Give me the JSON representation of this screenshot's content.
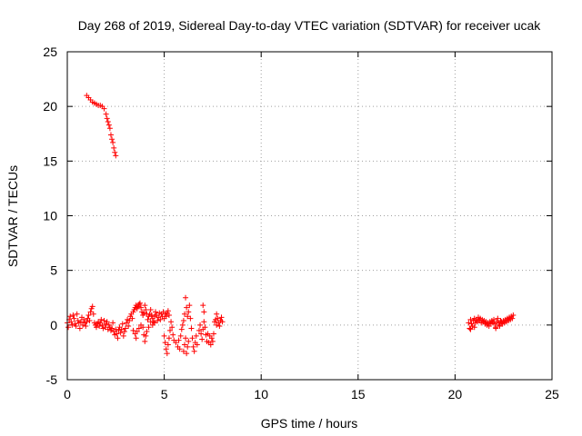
{
  "chart_data": {
    "type": "scatter",
    "title": "Day 268 of 2019, Sidereal Day-to-day VTEC variation (SDTVAR) for receiver ucak",
    "xlabel": "GPS time / hours",
    "ylabel": "SDTVAR / TECUs",
    "xlim": [
      0,
      25
    ],
    "ylim": [
      -5,
      25
    ],
    "x_ticks": [
      0,
      5,
      10,
      15,
      20,
      25
    ],
    "y_ticks": [
      -5,
      0,
      5,
      10,
      15,
      20,
      25
    ],
    "grid": true,
    "marker": "+",
    "series": [
      {
        "name": "SDTVAR",
        "color": "#ff0000",
        "points": [
          [
            1.0,
            21.0
          ],
          [
            1.1,
            20.8
          ],
          [
            1.2,
            20.6
          ],
          [
            1.3,
            20.4
          ],
          [
            1.4,
            20.3
          ],
          [
            1.5,
            20.2
          ],
          [
            1.6,
            20.1
          ],
          [
            1.7,
            20.1
          ],
          [
            1.8,
            20.0
          ],
          [
            1.9,
            19.8
          ],
          [
            2.0,
            19.3
          ],
          [
            2.05,
            18.9
          ],
          [
            2.1,
            18.6
          ],
          [
            2.15,
            18.3
          ],
          [
            2.2,
            18.0
          ],
          [
            2.25,
            17.4
          ],
          [
            2.3,
            17.0
          ],
          [
            2.35,
            16.7
          ],
          [
            2.4,
            16.2
          ],
          [
            2.45,
            15.8
          ],
          [
            2.5,
            15.5
          ],
          [
            0.0,
            0.2
          ],
          [
            0.05,
            -0.2
          ],
          [
            0.1,
            0.5
          ],
          [
            0.15,
            0.8
          ],
          [
            0.2,
            0.3
          ],
          [
            0.25,
            0.0
          ],
          [
            0.3,
            0.9
          ],
          [
            0.35,
            0.6
          ],
          [
            0.4,
            0.1
          ],
          [
            0.45,
            -0.1
          ],
          [
            0.5,
            1.0
          ],
          [
            0.55,
            0.4
          ],
          [
            0.6,
            0.2
          ],
          [
            0.65,
            -0.3
          ],
          [
            0.7,
            0.3
          ],
          [
            0.75,
            0.7
          ],
          [
            0.8,
            0.0
          ],
          [
            0.85,
            0.5
          ],
          [
            0.9,
            0.2
          ],
          [
            0.95,
            -0.1
          ],
          [
            1.0,
            0.3
          ],
          [
            1.05,
            0.6
          ],
          [
            1.1,
            0.9
          ],
          [
            1.15,
            0.4
          ],
          [
            1.2,
            1.2
          ],
          [
            1.25,
            1.5
          ],
          [
            1.3,
            1.7
          ],
          [
            1.35,
            1.0
          ],
          [
            1.4,
            0.2
          ],
          [
            1.45,
            0.0
          ],
          [
            1.5,
            -0.2
          ],
          [
            1.55,
            0.1
          ],
          [
            1.6,
            0.3
          ],
          [
            1.65,
            -0.1
          ],
          [
            1.7,
            0.2
          ],
          [
            1.75,
            0.5
          ],
          [
            1.8,
            0.0
          ],
          [
            1.85,
            -0.3
          ],
          [
            1.9,
            0.4
          ],
          [
            1.95,
            -0.2
          ],
          [
            2.0,
            0.1
          ],
          [
            2.05,
            0.3
          ],
          [
            2.1,
            -0.4
          ],
          [
            2.15,
            0.0
          ],
          [
            2.2,
            -0.2
          ],
          [
            2.25,
            -0.5
          ],
          [
            2.3,
            -0.3
          ],
          [
            2.35,
            0.2
          ],
          [
            2.4,
            -0.6
          ],
          [
            2.45,
            -0.9
          ],
          [
            2.5,
            -0.4
          ],
          [
            2.55,
            -0.8
          ],
          [
            2.6,
            -1.2
          ],
          [
            2.65,
            -0.5
          ],
          [
            2.7,
            -0.2
          ],
          [
            2.75,
            -0.7
          ],
          [
            2.8,
            -0.4
          ],
          [
            2.85,
            0.1
          ],
          [
            2.9,
            -1.0
          ],
          [
            2.95,
            -0.6
          ],
          [
            3.0,
            -0.3
          ],
          [
            3.05,
            0.2
          ],
          [
            3.1,
            0.5
          ],
          [
            3.15,
            -0.1
          ],
          [
            3.2,
            0.4
          ],
          [
            3.25,
            0.8
          ],
          [
            3.3,
            1.0
          ],
          [
            3.35,
            0.6
          ],
          [
            3.4,
            1.2
          ],
          [
            3.45,
            1.4
          ],
          [
            3.5,
            1.6
          ],
          [
            3.55,
            1.8
          ],
          [
            3.6,
            1.5
          ],
          [
            3.65,
            1.7
          ],
          [
            3.7,
            1.9
          ],
          [
            3.75,
            2.0
          ],
          [
            3.8,
            1.6
          ],
          [
            3.85,
            1.2
          ],
          [
            3.9,
            0.9
          ],
          [
            3.95,
            1.1
          ],
          [
            4.0,
            1.8
          ],
          [
            4.05,
            1.4
          ],
          [
            4.1,
            1.0
          ],
          [
            4.15,
            0.5
          ],
          [
            4.2,
            0.8
          ],
          [
            4.25,
            1.0
          ],
          [
            4.3,
            1.4
          ],
          [
            4.35,
            0.9
          ],
          [
            4.4,
            0.6
          ],
          [
            4.45,
            0.3
          ],
          [
            4.5,
            0.8
          ],
          [
            4.55,
            1.2
          ],
          [
            4.6,
            0.9
          ],
          [
            4.65,
            0.4
          ],
          [
            4.7,
            0.7
          ],
          [
            4.75,
            1.1
          ],
          [
            4.8,
            0.5
          ],
          [
            4.85,
            1.0
          ],
          [
            4.9,
            0.8
          ],
          [
            4.95,
            1.2
          ],
          [
            5.0,
            0.6
          ],
          [
            5.05,
            1.0
          ],
          [
            5.1,
            0.8
          ],
          [
            5.15,
            1.1
          ],
          [
            5.2,
            1.3
          ],
          [
            5.25,
            0.9
          ],
          [
            3.4,
            -0.5
          ],
          [
            3.5,
            -0.8
          ],
          [
            3.55,
            -1.2
          ],
          [
            3.6,
            -0.6
          ],
          [
            3.7,
            -0.3
          ],
          [
            3.8,
            0.0
          ],
          [
            3.9,
            -0.2
          ],
          [
            3.95,
            -0.9
          ],
          [
            4.0,
            -1.5
          ],
          [
            4.05,
            -1.0
          ],
          [
            4.1,
            -0.6
          ],
          [
            4.2,
            -0.2
          ],
          [
            4.3,
            0.3
          ],
          [
            4.4,
            0.0
          ],
          [
            4.5,
            0.2
          ],
          [
            5.0,
            -1.0
          ],
          [
            5.05,
            -1.6
          ],
          [
            5.1,
            -2.2
          ],
          [
            5.15,
            -2.6
          ],
          [
            5.2,
            -1.8
          ],
          [
            5.25,
            -1.2
          ],
          [
            5.3,
            -0.5
          ],
          [
            5.35,
            0.3
          ],
          [
            5.4,
            -0.2
          ],
          [
            5.45,
            -0.9
          ],
          [
            5.5,
            -1.4
          ],
          [
            5.6,
            -1.6
          ],
          [
            5.7,
            -2.0
          ],
          [
            5.75,
            -1.4
          ],
          [
            5.8,
            -2.2
          ],
          [
            5.85,
            -1.0
          ],
          [
            5.9,
            -0.4
          ],
          [
            5.95,
            0.0
          ],
          [
            6.0,
            0.4
          ],
          [
            6.05,
            1.0
          ],
          [
            6.1,
            2.5
          ],
          [
            6.15,
            1.6
          ],
          [
            6.2,
            0.8
          ],
          [
            6.25,
            1.2
          ],
          [
            6.3,
            1.8
          ],
          [
            6.35,
            0.6
          ],
          [
            6.4,
            -0.3
          ],
          [
            6.45,
            -1.2
          ],
          [
            6.5,
            -2.0
          ],
          [
            6.55,
            -2.4
          ],
          [
            6.6,
            -1.6
          ],
          [
            6.65,
            -1.0
          ],
          [
            6.7,
            -1.8
          ],
          [
            6.0,
            -2.4
          ],
          [
            6.05,
            -1.8
          ],
          [
            6.1,
            -1.2
          ],
          [
            6.15,
            -2.6
          ],
          [
            6.2,
            -2.0
          ],
          [
            6.25,
            -1.5
          ],
          [
            6.8,
            -0.5
          ],
          [
            6.85,
            0.0
          ],
          [
            6.9,
            -0.8
          ],
          [
            6.95,
            -1.3
          ],
          [
            7.0,
            -0.4
          ],
          [
            7.05,
            0.3
          ],
          [
            7.1,
            -0.2
          ],
          [
            7.15,
            -0.9
          ],
          [
            7.2,
            -1.5
          ],
          [
            7.25,
            -0.8
          ],
          [
            7.3,
            -1.6
          ],
          [
            7.35,
            -1.0
          ],
          [
            7.4,
            -1.8
          ],
          [
            7.45,
            -1.2
          ],
          [
            7.5,
            -1.5
          ],
          [
            7.55,
            -0.8
          ],
          [
            7.6,
            0.3
          ],
          [
            7.65,
            0.5
          ],
          [
            7.7,
            0.0
          ],
          [
            7.75,
            0.6
          ],
          [
            7.8,
            0.2
          ],
          [
            7.85,
            -0.1
          ],
          [
            7.9,
            0.4
          ],
          [
            8.0,
            0.3
          ],
          [
            7.0,
            1.8
          ],
          [
            7.05,
            1.2
          ],
          [
            7.7,
            1.0
          ],
          [
            7.95,
            0.7
          ],
          [
            20.7,
            0.2
          ],
          [
            20.75,
            -0.3
          ],
          [
            20.8,
            0.5
          ],
          [
            20.85,
            0.1
          ],
          [
            20.9,
            -0.1
          ],
          [
            20.95,
            0.4
          ],
          [
            21.0,
            0.6
          ],
          [
            21.05,
            0.2
          ],
          [
            21.1,
            0.5
          ],
          [
            21.15,
            0.3
          ],
          [
            21.2,
            0.7
          ],
          [
            21.25,
            0.4
          ],
          [
            21.3,
            0.6
          ],
          [
            21.35,
            0.2
          ],
          [
            21.4,
            0.5
          ],
          [
            21.45,
            0.3
          ],
          [
            21.5,
            0.4
          ],
          [
            21.55,
            0.1
          ],
          [
            21.6,
            0.3
          ],
          [
            21.65,
            0.0
          ],
          [
            21.7,
            0.2
          ],
          [
            21.75,
            -0.1
          ],
          [
            21.8,
            0.3
          ],
          [
            21.85,
            0.1
          ],
          [
            21.9,
            0.4
          ],
          [
            21.95,
            0.2
          ],
          [
            22.0,
            0.5
          ],
          [
            22.05,
            0.1
          ],
          [
            22.1,
            -0.2
          ],
          [
            22.15,
            0.3
          ],
          [
            22.2,
            0.6
          ],
          [
            22.25,
            0.2
          ],
          [
            22.3,
            0.0
          ],
          [
            22.35,
            0.4
          ],
          [
            22.4,
            0.3
          ],
          [
            22.45,
            0.1
          ],
          [
            22.5,
            0.4
          ],
          [
            22.55,
            0.2
          ],
          [
            22.6,
            0.5
          ],
          [
            22.65,
            0.3
          ],
          [
            22.7,
            0.6
          ],
          [
            22.75,
            0.4
          ],
          [
            22.8,
            0.7
          ],
          [
            22.85,
            0.5
          ],
          [
            22.9,
            0.8
          ],
          [
            22.95,
            0.6
          ],
          [
            23.0,
            0.9
          ],
          [
            20.8,
            -0.4
          ],
          [
            21.0,
            -0.2
          ],
          [
            22.1,
            -0.3
          ],
          [
            22.3,
            -0.1
          ]
        ]
      }
    ]
  }
}
